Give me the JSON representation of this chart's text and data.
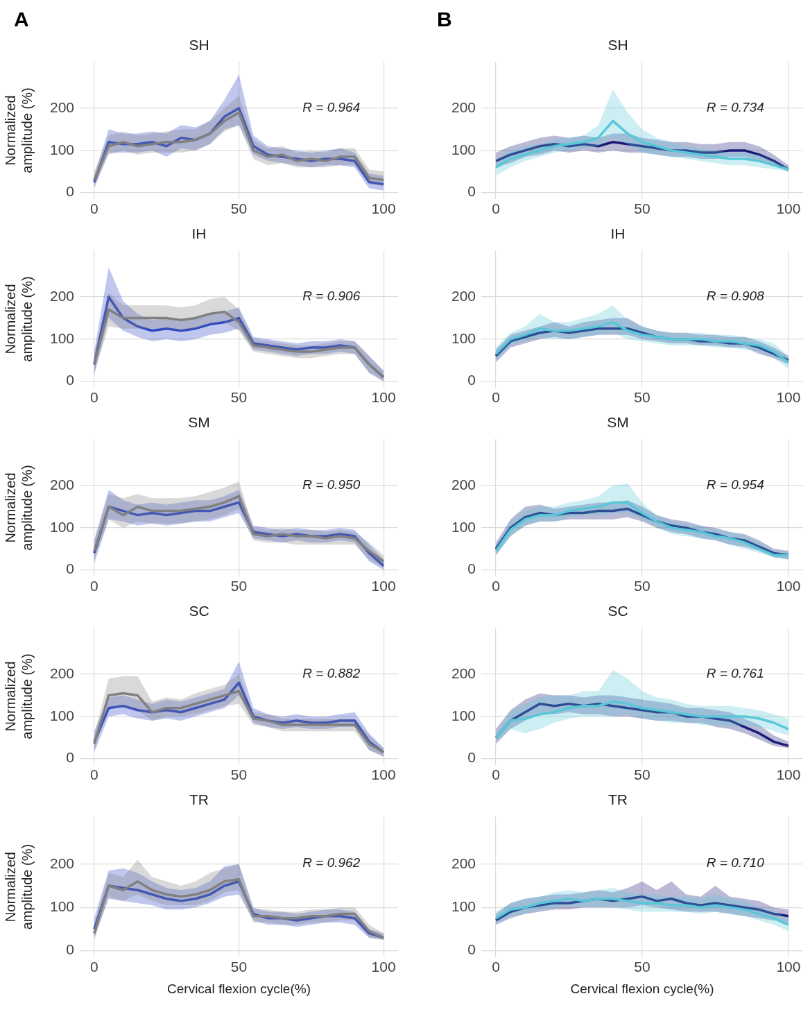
{
  "chart_data": [
    {
      "type": "line",
      "title": "SH",
      "ylabel": "Normalized amplitude (%)",
      "annotations": [
        "R = 0.964",
        "A"
      ],
      "x": [
        0,
        5,
        10,
        15,
        20,
        25,
        30,
        35,
        40,
        45,
        50,
        55,
        60,
        65,
        70,
        75,
        80,
        85,
        90,
        95,
        100
      ],
      "xlim": [
        -5,
        105
      ],
      "ylim": [
        -15,
        310
      ],
      "xticks": [
        0,
        50,
        100
      ],
      "yticks": [
        0,
        100,
        200
      ],
      "grid": true,
      "legend": false,
      "series": [
        {
          "color": "#808080",
          "values": [
            30,
            110,
            120,
            110,
            115,
            120,
            120,
            125,
            140,
            170,
            190,
            100,
            85,
            90,
            75,
            80,
            75,
            85,
            85,
            35,
            30
          ],
          "lower": [
            15,
            90,
            100,
            90,
            95,
            95,
            95,
            100,
            115,
            145,
            160,
            80,
            65,
            70,
            60,
            60,
            60,
            65,
            65,
            20,
            15
          ],
          "upper": [
            50,
            135,
            145,
            135,
            140,
            145,
            150,
            150,
            170,
            200,
            230,
            125,
            105,
            110,
            95,
            100,
            95,
            105,
            105,
            55,
            50
          ]
        },
        {
          "color": "#2a46c8",
          "values": [
            25,
            120,
            115,
            115,
            120,
            110,
            130,
            125,
            140,
            180,
            200,
            110,
            90,
            85,
            80,
            75,
            80,
            80,
            75,
            25,
            20
          ],
          "lower": [
            10,
            95,
            95,
            95,
            100,
            85,
            105,
            100,
            115,
            150,
            160,
            90,
            75,
            70,
            65,
            60,
            65,
            65,
            60,
            10,
            5
          ],
          "upper": [
            40,
            150,
            140,
            140,
            145,
            140,
            160,
            155,
            170,
            220,
            280,
            135,
            110,
            105,
            100,
            95,
            100,
            105,
            95,
            45,
            40
          ]
        }
      ]
    },
    {
      "type": "line",
      "title": "SH",
      "annotations": [
        "R = 0.734",
        "B"
      ],
      "x": [
        0,
        5,
        10,
        15,
        20,
        25,
        30,
        35,
        40,
        45,
        50,
        55,
        60,
        65,
        70,
        75,
        80,
        85,
        90,
        95,
        100
      ],
      "xlim": [
        -5,
        105
      ],
      "ylim": [
        -15,
        310
      ],
      "xticks": [
        0,
        50,
        100
      ],
      "yticks": [
        0,
        100,
        200
      ],
      "grid": true,
      "legend": false,
      "series": [
        {
          "color": "#5bc8d8",
          "values": [
            60,
            80,
            90,
            100,
            110,
            115,
            120,
            130,
            170,
            140,
            120,
            110,
            100,
            95,
            90,
            85,
            80,
            80,
            75,
            65,
            55
          ],
          "lower": [
            40,
            60,
            75,
            85,
            95,
            100,
            105,
            110,
            130,
            115,
            95,
            90,
            85,
            80,
            75,
            70,
            65,
            65,
            60,
            55,
            50
          ],
          "upper": [
            80,
            100,
            110,
            115,
            125,
            130,
            135,
            160,
            245,
            190,
            150,
            130,
            120,
            110,
            105,
            100,
            95,
            95,
            90,
            75,
            60
          ]
        },
        {
          "color": "#1c1c78",
          "values": [
            75,
            90,
            100,
            110,
            115,
            110,
            115,
            110,
            120,
            115,
            110,
            105,
            100,
            100,
            95,
            95,
            100,
            100,
            90,
            75,
            55
          ],
          "lower": [
            60,
            70,
            85,
            90,
            100,
            95,
            100,
            95,
            100,
            95,
            95,
            90,
            85,
            85,
            80,
            80,
            85,
            85,
            75,
            65,
            50
          ],
          "upper": [
            95,
            110,
            120,
            130,
            135,
            130,
            135,
            130,
            140,
            140,
            130,
            125,
            120,
            120,
            115,
            115,
            120,
            120,
            110,
            90,
            65
          ]
        }
      ]
    },
    {
      "type": "line",
      "title": "IH",
      "ylabel": "Normalized amplitude (%)",
      "annotations": [
        "R = 0.906"
      ],
      "x": [
        0,
        5,
        10,
        15,
        20,
        25,
        30,
        35,
        40,
        45,
        50,
        55,
        60,
        65,
        70,
        75,
        80,
        85,
        90,
        95,
        100
      ],
      "xlim": [
        -5,
        105
      ],
      "ylim": [
        -15,
        310
      ],
      "xticks": [
        0,
        50,
        100
      ],
      "yticks": [
        0,
        100,
        200
      ],
      "grid": true,
      "legend": false,
      "series": [
        {
          "color": "#808080",
          "values": [
            40,
            170,
            150,
            150,
            150,
            150,
            145,
            150,
            160,
            165,
            140,
            85,
            80,
            75,
            70,
            70,
            75,
            80,
            80,
            40,
            10
          ],
          "lower": [
            20,
            130,
            125,
            125,
            125,
            125,
            120,
            125,
            135,
            140,
            120,
            70,
            65,
            60,
            55,
            55,
            60,
            65,
            65,
            20,
            0
          ],
          "upper": [
            65,
            210,
            180,
            180,
            180,
            180,
            175,
            180,
            195,
            200,
            170,
            100,
            95,
            90,
            85,
            85,
            90,
            95,
            95,
            60,
            25
          ]
        },
        {
          "color": "#2a46c8",
          "values": [
            40,
            200,
            150,
            130,
            120,
            125,
            120,
            125,
            135,
            140,
            150,
            90,
            85,
            80,
            75,
            80,
            80,
            85,
            80,
            40,
            10
          ],
          "lower": [
            15,
            150,
            120,
            105,
            95,
            100,
            95,
            100,
            110,
            115,
            125,
            75,
            70,
            65,
            60,
            65,
            65,
            70,
            65,
            20,
            0
          ],
          "upper": [
            70,
            270,
            190,
            160,
            145,
            150,
            145,
            150,
            160,
            165,
            175,
            105,
            100,
            95,
            90,
            95,
            95,
            100,
            95,
            60,
            25
          ]
        }
      ]
    },
    {
      "type": "line",
      "title": "IH",
      "annotations": [
        "R = 0.908"
      ],
      "x": [
        0,
        5,
        10,
        15,
        20,
        25,
        30,
        35,
        40,
        45,
        50,
        55,
        60,
        65,
        70,
        75,
        80,
        85,
        90,
        95,
        100
      ],
      "xlim": [
        -5,
        105
      ],
      "ylim": [
        -15,
        310
      ],
      "xticks": [
        0,
        50,
        100
      ],
      "yticks": [
        0,
        100,
        200
      ],
      "grid": true,
      "legend": false,
      "series": [
        {
          "color": "#5bc8d8",
          "values": [
            65,
            100,
            110,
            125,
            120,
            120,
            125,
            130,
            140,
            120,
            110,
            105,
            100,
            100,
            100,
            95,
            95,
            90,
            85,
            70,
            45
          ],
          "lower": [
            50,
            85,
            95,
            105,
            100,
            100,
            105,
            110,
            115,
            100,
            95,
            90,
            85,
            85,
            85,
            80,
            80,
            75,
            70,
            55,
            30
          ],
          "upper": [
            80,
            115,
            130,
            160,
            140,
            140,
            150,
            160,
            180,
            145,
            130,
            120,
            115,
            115,
            115,
            110,
            110,
            105,
            100,
            90,
            60
          ]
        },
        {
          "color": "#1c1c78",
          "values": [
            60,
            95,
            105,
            115,
            120,
            115,
            120,
            125,
            125,
            125,
            115,
            105,
            100,
            100,
            95,
            95,
            90,
            90,
            80,
            65,
            50
          ],
          "lower": [
            45,
            80,
            90,
            100,
            105,
            100,
            105,
            110,
            110,
            110,
            100,
            95,
            90,
            90,
            85,
            85,
            80,
            80,
            65,
            55,
            40
          ],
          "upper": [
            75,
            110,
            120,
            130,
            140,
            130,
            140,
            145,
            150,
            150,
            130,
            120,
            115,
            115,
            110,
            110,
            105,
            105,
            95,
            80,
            60
          ]
        }
      ]
    },
    {
      "type": "line",
      "title": "SM",
      "ylabel": "Normalized amplitude (%)",
      "annotations": [
        "R = 0.950"
      ],
      "x": [
        0,
        5,
        10,
        15,
        20,
        25,
        30,
        35,
        40,
        45,
        50,
        55,
        60,
        65,
        70,
        75,
        80,
        85,
        90,
        95,
        100
      ],
      "xlim": [
        -5,
        105
      ],
      "ylim": [
        -15,
        310
      ],
      "xticks": [
        0,
        50,
        100
      ],
      "yticks": [
        0,
        100,
        200
      ],
      "grid": true,
      "legend": false,
      "series": [
        {
          "color": "#808080",
          "values": [
            45,
            150,
            130,
            150,
            140,
            140,
            140,
            145,
            150,
            160,
            175,
            85,
            80,
            85,
            80,
            80,
            75,
            80,
            75,
            45,
            20
          ],
          "lower": [
            25,
            120,
            100,
            115,
            110,
            110,
            110,
            115,
            120,
            130,
            145,
            70,
            65,
            65,
            60,
            60,
            60,
            60,
            60,
            25,
            5
          ],
          "upper": [
            70,
            180,
            170,
            180,
            170,
            170,
            170,
            175,
            185,
            195,
            210,
            100,
            95,
            100,
            95,
            95,
            90,
            95,
            90,
            65,
            35
          ]
        },
        {
          "color": "#2a46c8",
          "values": [
            40,
            150,
            140,
            130,
            135,
            130,
            135,
            140,
            140,
            150,
            160,
            90,
            85,
            80,
            85,
            80,
            80,
            85,
            80,
            40,
            10
          ],
          "lower": [
            15,
            120,
            115,
            105,
            110,
            105,
            110,
            115,
            115,
            125,
            135,
            75,
            70,
            65,
            70,
            65,
            65,
            70,
            65,
            20,
            0
          ],
          "upper": [
            70,
            190,
            165,
            155,
            160,
            155,
            160,
            165,
            165,
            175,
            190,
            105,
            100,
            95,
            100,
            95,
            95,
            100,
            95,
            60,
            25
          ]
        }
      ]
    },
    {
      "type": "line",
      "title": "SM",
      "annotations": [
        "R = 0.954"
      ],
      "x": [
        0,
        5,
        10,
        15,
        20,
        25,
        30,
        35,
        40,
        45,
        50,
        55,
        60,
        65,
        70,
        75,
        80,
        85,
        90,
        95,
        100
      ],
      "xlim": [
        -5,
        105
      ],
      "ylim": [
        -15,
        310
      ],
      "xticks": [
        0,
        50,
        100
      ],
      "yticks": [
        0,
        100,
        200
      ],
      "grid": true,
      "legend": false,
      "series": [
        {
          "color": "#5bc8d8",
          "values": [
            45,
            95,
            120,
            130,
            130,
            140,
            145,
            150,
            160,
            160,
            135,
            115,
            100,
            95,
            90,
            80,
            75,
            65,
            50,
            35,
            35
          ],
          "lower": [
            35,
            80,
            105,
            115,
            115,
            125,
            130,
            130,
            135,
            135,
            120,
            100,
            85,
            80,
            75,
            70,
            60,
            50,
            40,
            30,
            25
          ],
          "upper": [
            55,
            115,
            140,
            150,
            150,
            160,
            165,
            175,
            200,
            205,
            160,
            130,
            115,
            110,
            105,
            95,
            90,
            80,
            65,
            45,
            45
          ]
        },
        {
          "color": "#1c1c78",
          "values": [
            50,
            100,
            125,
            135,
            130,
            135,
            135,
            140,
            140,
            145,
            130,
            115,
            105,
            100,
            90,
            85,
            75,
            70,
            55,
            40,
            35
          ],
          "lower": [
            35,
            80,
            105,
            115,
            115,
            120,
            120,
            120,
            120,
            125,
            115,
            100,
            90,
            85,
            75,
            70,
            60,
            55,
            45,
            30,
            25
          ],
          "upper": [
            65,
            120,
            150,
            155,
            145,
            150,
            155,
            160,
            160,
            165,
            150,
            130,
            120,
            115,
            105,
            100,
            90,
            85,
            70,
            50,
            45
          ]
        }
      ]
    },
    {
      "type": "line",
      "title": "SC",
      "ylabel": "Normalized amplitude (%)",
      "annotations": [
        "R = 0.882"
      ],
      "x": [
        0,
        5,
        10,
        15,
        20,
        25,
        30,
        35,
        40,
        45,
        50,
        55,
        60,
        65,
        70,
        75,
        80,
        85,
        90,
        95,
        100
      ],
      "xlim": [
        -5,
        105
      ],
      "ylim": [
        -15,
        310
      ],
      "xticks": [
        0,
        50,
        100
      ],
      "yticks": [
        0,
        100,
        200
      ],
      "grid": true,
      "legend": false,
      "series": [
        {
          "color": "#808080",
          "values": [
            35,
            150,
            155,
            150,
            110,
            120,
            120,
            130,
            140,
            150,
            160,
            95,
            90,
            80,
            80,
            80,
            80,
            80,
            80,
            35,
            15
          ],
          "lower": [
            20,
            120,
            120,
            115,
            90,
            100,
            100,
            105,
            115,
            125,
            130,
            80,
            75,
            65,
            65,
            65,
            65,
            65,
            65,
            20,
            5
          ],
          "upper": [
            55,
            190,
            195,
            195,
            135,
            145,
            140,
            155,
            165,
            175,
            200,
            110,
            105,
            95,
            95,
            95,
            95,
            95,
            95,
            55,
            25
          ]
        },
        {
          "color": "#2a46c8",
          "values": [
            40,
            120,
            125,
            115,
            110,
            115,
            110,
            120,
            130,
            140,
            180,
            100,
            90,
            85,
            90,
            85,
            85,
            90,
            90,
            40,
            15
          ],
          "lower": [
            15,
            100,
            105,
            95,
            90,
            95,
            90,
            100,
            110,
            120,
            150,
            85,
            75,
            70,
            75,
            70,
            70,
            75,
            75,
            20,
            5
          ],
          "upper": [
            65,
            145,
            150,
            140,
            130,
            140,
            135,
            145,
            155,
            165,
            230,
            120,
            105,
            100,
            105,
            100,
            100,
            105,
            110,
            60,
            25
          ]
        }
      ]
    },
    {
      "type": "line",
      "title": "SC",
      "annotations": [
        "R = 0.761"
      ],
      "x": [
        0,
        5,
        10,
        15,
        20,
        25,
        30,
        35,
        40,
        45,
        50,
        55,
        60,
        65,
        70,
        75,
        80,
        85,
        90,
        95,
        100
      ],
      "xlim": [
        -5,
        105
      ],
      "ylim": [
        -15,
        310
      ],
      "xticks": [
        0,
        50,
        100
      ],
      "yticks": [
        0,
        100,
        200
      ],
      "grid": true,
      "legend": false,
      "series": [
        {
          "color": "#5bc8d8",
          "values": [
            50,
            90,
            95,
            105,
            110,
            120,
            125,
            125,
            135,
            130,
            120,
            115,
            110,
            105,
            100,
            100,
            100,
            100,
            95,
            85,
            70
          ],
          "lower": [
            40,
            70,
            60,
            70,
            85,
            95,
            100,
            100,
            100,
            105,
            95,
            90,
            85,
            85,
            80,
            80,
            75,
            80,
            75,
            65,
            55
          ],
          "upper": [
            60,
            110,
            130,
            145,
            150,
            150,
            160,
            160,
            210,
            190,
            160,
            145,
            140,
            130,
            125,
            125,
            125,
            120,
            115,
            105,
            95
          ]
        },
        {
          "color": "#1c1c78",
          "values": [
            50,
            90,
            110,
            130,
            125,
            130,
            125,
            130,
            125,
            120,
            115,
            110,
            110,
            100,
            100,
            95,
            90,
            75,
            60,
            40,
            30
          ],
          "lower": [
            35,
            70,
            90,
            105,
            105,
            110,
            105,
            105,
            100,
            100,
            95,
            90,
            90,
            85,
            85,
            75,
            70,
            60,
            45,
            30,
            25
          ],
          "upper": [
            70,
            115,
            140,
            155,
            150,
            150,
            145,
            150,
            150,
            145,
            140,
            135,
            130,
            120,
            120,
            115,
            110,
            95,
            80,
            55,
            40
          ]
        }
      ]
    },
    {
      "type": "line",
      "title": "TR",
      "xlabel": "Cervical flexion cycle(%)",
      "ylabel": "Normalized amplitude (%)",
      "annotations": [
        "R = 0.962"
      ],
      "x": [
        0,
        5,
        10,
        15,
        20,
        25,
        30,
        35,
        40,
        45,
        50,
        55,
        60,
        65,
        70,
        75,
        80,
        85,
        90,
        95,
        100
      ],
      "xlim": [
        -5,
        105
      ],
      "ylim": [
        -15,
        310
      ],
      "xticks": [
        0,
        50,
        100
      ],
      "yticks": [
        0,
        100,
        200
      ],
      "grid": true,
      "legend": false,
      "series": [
        {
          "color": "#808080",
          "values": [
            40,
            150,
            140,
            160,
            140,
            130,
            125,
            130,
            140,
            160,
            165,
            80,
            80,
            75,
            75,
            80,
            80,
            85,
            85,
            45,
            30
          ],
          "lower": [
            25,
            125,
            115,
            130,
            115,
            105,
            105,
            105,
            115,
            135,
            140,
            65,
            65,
            60,
            60,
            65,
            65,
            70,
            70,
            30,
            25
          ],
          "upper": [
            60,
            180,
            170,
            210,
            170,
            160,
            150,
            160,
            180,
            190,
            200,
            95,
            95,
            90,
            90,
            95,
            95,
            100,
            100,
            60,
            40
          ]
        },
        {
          "color": "#2a46c8",
          "values": [
            50,
            150,
            145,
            140,
            130,
            120,
            115,
            120,
            130,
            150,
            160,
            85,
            75,
            75,
            70,
            75,
            80,
            80,
            75,
            40,
            30
          ],
          "lower": [
            30,
            120,
            115,
            110,
            105,
            95,
            95,
            100,
            110,
            125,
            130,
            70,
            60,
            60,
            55,
            60,
            65,
            65,
            60,
            30,
            25
          ],
          "upper": [
            75,
            185,
            190,
            180,
            160,
            145,
            140,
            145,
            160,
            195,
            200,
            100,
            90,
            90,
            85,
            90,
            95,
            95,
            90,
            50,
            40
          ]
        }
      ]
    },
    {
      "type": "line",
      "title": "TR",
      "xlabel": "Cervical flexion cycle(%)",
      "annotations": [
        "R = 0.710"
      ],
      "x": [
        0,
        5,
        10,
        15,
        20,
        25,
        30,
        35,
        40,
        45,
        50,
        55,
        60,
        65,
        70,
        75,
        80,
        85,
        90,
        95,
        100
      ],
      "xlim": [
        -5,
        105
      ],
      "ylim": [
        -15,
        310
      ],
      "xticks": [
        0,
        50,
        100
      ],
      "yticks": [
        0,
        100,
        200
      ],
      "grid": true,
      "legend": false,
      "series": [
        {
          "color": "#5bc8d8",
          "values": [
            75,
            95,
            100,
            110,
            115,
            120,
            115,
            120,
            120,
            115,
            110,
            110,
            105,
            105,
            100,
            105,
            100,
            95,
            85,
            75,
            60
          ],
          "lower": [
            60,
            80,
            85,
            95,
            100,
            105,
            100,
            100,
            100,
            95,
            90,
            90,
            90,
            90,
            85,
            90,
            85,
            80,
            70,
            60,
            45
          ],
          "upper": [
            90,
            110,
            120,
            125,
            135,
            140,
            135,
            140,
            145,
            135,
            130,
            130,
            125,
            125,
            120,
            130,
            120,
            115,
            100,
            90,
            75
          ]
        },
        {
          "color": "#1c1c78",
          "values": [
            70,
            90,
            100,
            105,
            110,
            110,
            115,
            120,
            115,
            120,
            125,
            115,
            120,
            110,
            105,
            110,
            105,
            100,
            95,
            85,
            80
          ],
          "lower": [
            60,
            75,
            85,
            90,
            95,
            95,
            100,
            100,
            100,
            100,
            105,
            100,
            95,
            90,
            90,
            90,
            85,
            80,
            75,
            70,
            65
          ],
          "upper": [
            85,
            110,
            120,
            125,
            130,
            130,
            135,
            140,
            135,
            145,
            160,
            140,
            160,
            130,
            125,
            150,
            125,
            120,
            115,
            100,
            95
          ]
        }
      ]
    }
  ]
}
